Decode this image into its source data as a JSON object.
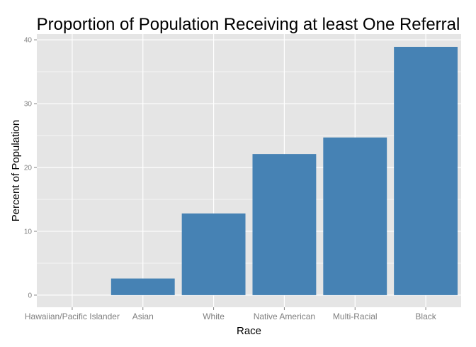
{
  "chart_data": {
    "type": "bar",
    "title": "Proportion of Population Receiving at least One Referral",
    "xlabel": "Race",
    "ylabel": "Percent of Population",
    "categories": [
      "Hawaiian/Pacific Islander",
      "Asian",
      "White",
      "Native American",
      "Multi-Racial",
      "Black"
    ],
    "values": [
      0,
      2.6,
      12.8,
      22.1,
      24.7,
      38.9
    ],
    "ylim": [
      -1.9,
      40.9
    ],
    "yticks": [
      0,
      10,
      20,
      30,
      40
    ],
    "grid": true,
    "legend": "none",
    "colors": {
      "bar": "#4682B4",
      "panel": "#E5E5E5",
      "grid": "#FFFFFF",
      "tick_text": "#7F7F7F"
    }
  }
}
